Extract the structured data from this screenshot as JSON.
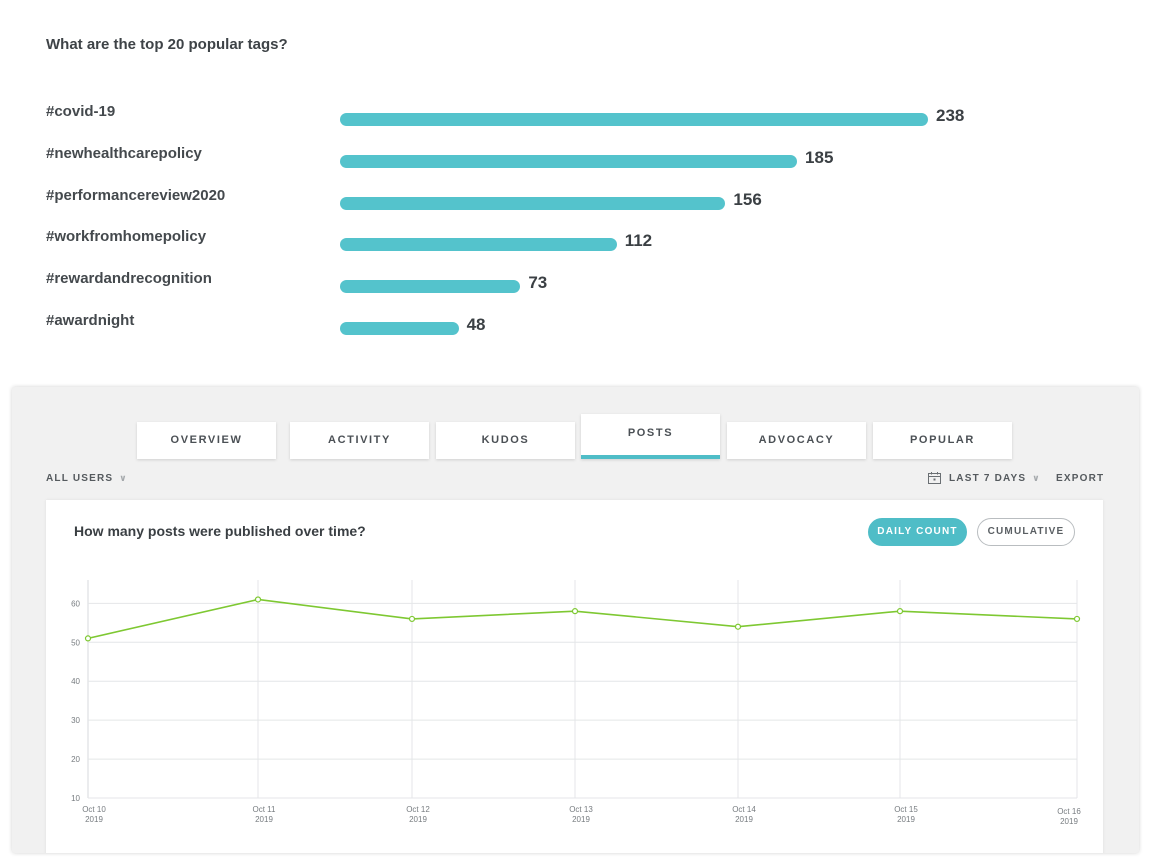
{
  "tags_chart": {
    "title": "What are the top 20 popular tags?",
    "accent_color": "#54c3cc"
  },
  "chart_data": [
    {
      "type": "bar",
      "orientation": "horizontal",
      "title": "What are the top 20 popular tags?",
      "categories": [
        "#covid-19",
        "#newhealthcarepolicy",
        "#performancereview2020",
        "#workfromhomepolicy",
        "#rewardandrecognition",
        "#awardnight"
      ],
      "values": [
        238,
        185,
        156,
        112,
        73,
        48
      ],
      "value_labels": [
        "238",
        "185",
        "156",
        "112",
        "73",
        "48"
      ],
      "color": "#54c3cc",
      "grid": false
    },
    {
      "type": "line",
      "title": "How many posts were published over time?",
      "x": [
        "Oct 10 2019",
        "Oct 11 2019",
        "Oct 12 2019",
        "Oct 13 2019",
        "Oct 14 2019",
        "Oct 15 2019",
        "Oct 16 2019"
      ],
      "x_tick_labels": [
        [
          "Oct 10",
          "2019"
        ],
        [
          "Oct 11",
          "2019"
        ],
        [
          "Oct 12",
          "2019"
        ],
        [
          "Oct 13",
          "2019"
        ],
        [
          "Oct 14",
          "2019"
        ],
        [
          "Oct 15",
          "2019"
        ],
        [
          "Oct 16",
          "2019"
        ]
      ],
      "y_ticks": [
        "10",
        "20",
        "30",
        "40",
        "50",
        "60"
      ],
      "series": [
        {
          "values": [
            51,
            61,
            56,
            58,
            54,
            58,
            56
          ],
          "color": "#7ec832"
        }
      ],
      "ylim": [
        10,
        66
      ],
      "grid": true
    }
  ],
  "panel": {
    "tabs": [
      {
        "label": "OVERVIEW",
        "active": false
      },
      {
        "label": "ACTIVITY",
        "active": false
      },
      {
        "label": "KUDOS",
        "active": false
      },
      {
        "label": "POSTS",
        "active": true
      },
      {
        "label": "ADVOCACY",
        "active": false
      },
      {
        "label": "POPULAR",
        "active": false
      }
    ],
    "user_filter": "ALL USERS",
    "date_range": "LAST 7 DAYS",
    "export_label": "EXPORT",
    "icons": {
      "calendar": "calendar-icon",
      "chevron": "chevron-down-icon"
    },
    "card": {
      "title": "How many posts were published over time?",
      "toggle": [
        {
          "label": "DAILY COUNT",
          "selected": true
        },
        {
          "label": "CUMULATIVE",
          "selected": false
        }
      ]
    },
    "colors": {
      "accent": "#4fbdc7",
      "line": "#7ec832"
    }
  }
}
